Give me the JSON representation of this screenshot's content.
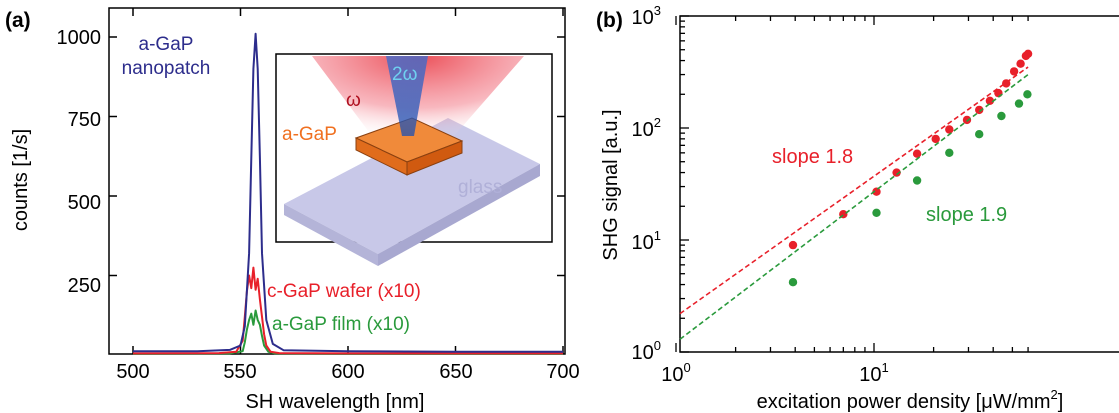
{
  "chart_data": [
    {
      "panel_label": "(a)",
      "type": "line",
      "xlabel": "SH wavelength [nm]",
      "ylabel": "counts [1/s]",
      "xlim": [
        500,
        700
      ],
      "ylim": [
        0,
        1060
      ],
      "x_ticks": [
        500,
        550,
        600,
        650,
        700
      ],
      "y_ticks": [
        250,
        500,
        750,
        1000
      ],
      "grid": false,
      "legend": "none",
      "series": [
        {
          "name": "a-GaP nanopatch",
          "color": "#2d2d8c",
          "x": [
            500,
            530,
            545,
            550,
            552,
            554,
            555,
            556,
            557,
            558,
            559,
            560,
            562,
            565,
            570,
            600,
            650,
            700
          ],
          "y": [
            12,
            12,
            16,
            30,
            90,
            320,
            620,
            900,
            1010,
            900,
            620,
            320,
            110,
            35,
            15,
            12,
            10,
            10
          ]
        },
        {
          "name": "c-GaP wafer (x10)",
          "color": "#e8202a",
          "x": [
            500,
            540,
            548,
            551,
            552,
            553,
            554,
            555,
            556,
            557,
            558,
            559,
            560,
            561,
            562,
            564,
            568,
            600,
            700
          ],
          "y": [
            5,
            6,
            10,
            45,
            120,
            200,
            250,
            210,
            275,
            205,
            240,
            175,
            120,
            65,
            30,
            10,
            6,
            5,
            5
          ]
        },
        {
          "name": "a-GaP film (x10)",
          "color": "#2a9a3c",
          "x": [
            500,
            545,
            551,
            552,
            553,
            554,
            555,
            556,
            557,
            558,
            559,
            560,
            561,
            563,
            566,
            600,
            700
          ],
          "y": [
            4,
            5,
            12,
            40,
            80,
            110,
            130,
            95,
            140,
            110,
            95,
            60,
            30,
            10,
            5,
            4,
            4
          ]
        }
      ],
      "annotations": [
        "a-GaP",
        "nanopatch",
        "c-GaP wafer (x10)",
        "a-GaP film (x10)"
      ],
      "inset": {
        "labels": {
          "omega": "ω",
          "two_omega": "2ω",
          "sample": "a-GaP",
          "substrate": "glass"
        },
        "colors": {
          "red_beam": "#e8303a",
          "blue_beam": "#2060c0",
          "sample": "#f08030",
          "substrate": "#c8c8e8"
        }
      }
    },
    {
      "panel_label": "(b)",
      "type": "scatter",
      "xlabel": "excitation power density [μW/mm²]",
      "ylabel": "SHG signal [a.u.]",
      "x_scale": "log",
      "y_scale": "log",
      "xlim": [
        1,
        60
      ],
      "ylim": [
        1,
        1000
      ],
      "x_ticks": [
        1,
        10
      ],
      "y_ticks": [
        1,
        10,
        100,
        1000
      ],
      "grid": false,
      "legend": "none",
      "series": [
        {
          "name": "slope 1.8",
          "color": "#e8202a",
          "x": [
            3.9,
            7.0,
            10.3,
            13.0,
            16.5,
            20.5,
            24.0,
            29.5,
            34.0,
            38.5,
            42.5,
            46.5,
            51.0,
            55.0,
            58.5,
            60.0
          ],
          "y": [
            9.0,
            17.0,
            27.0,
            40.0,
            59.0,
            80.0,
            97.0,
            118.0,
            145.0,
            175.0,
            205.0,
            250.0,
            320.0,
            375.0,
            440.0,
            460.0
          ],
          "fit": {
            "slope": 1.8,
            "x": [
              1,
              60
            ],
            "y": [
              2.2,
              350
            ]
          }
        },
        {
          "name": "slope 1.9",
          "color": "#2a9a3c",
          "x": [
            3.9,
            10.3,
            16.5,
            24.0,
            34.0,
            44.0,
            54.0,
            59.5
          ],
          "y": [
            4.2,
            17.5,
            34.0,
            60.0,
            88.0,
            128.0,
            165.0,
            200.0
          ],
          "fit": {
            "slope": 1.9,
            "x": [
              1,
              60
            ],
            "y": [
              1.3,
              300
            ]
          }
        }
      ],
      "annotations": [
        "slope 1.8",
        "slope 1.9"
      ]
    }
  ],
  "tick_text": {
    "a_x": [
      "500",
      "550",
      "600",
      "650",
      "700"
    ],
    "a_y": [
      "250",
      "500",
      "750",
      "1000"
    ],
    "b_x_base": [
      "10",
      "10"
    ],
    "b_x_exp": [
      "0",
      "1"
    ],
    "b_y_base": [
      "10",
      "10",
      "10",
      "10"
    ],
    "b_y_exp": [
      "0",
      "1",
      "2",
      "3"
    ]
  },
  "ylabel_b_text": "SHG signal [a.u.]",
  "xlabel_b_main": "excitation power density [μW/mm",
  "xlabel_b_sup": "2",
  "xlabel_b_end": "]"
}
